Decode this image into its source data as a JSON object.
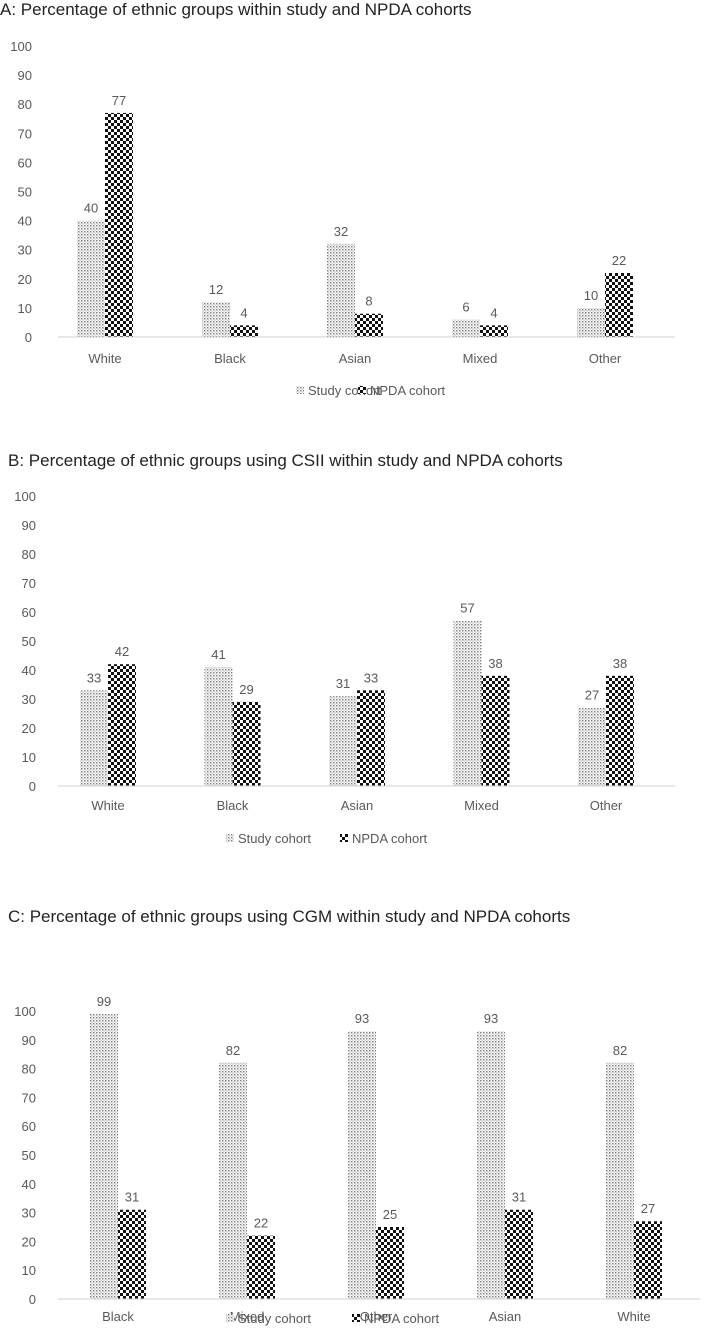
{
  "chart_data": [
    {
      "type": "bar",
      "title": "A: Percentage of ethnic groups within study and NPDA cohorts",
      "categories": [
        "White",
        "Black",
        "Asian",
        "Mixed",
        "Other"
      ],
      "series": [
        {
          "name": "Study cohort",
          "values": [
            40,
            12,
            32,
            6,
            10
          ]
        },
        {
          "name": "NPDA cohort",
          "values": [
            77,
            4,
            8,
            4,
            22
          ]
        }
      ],
      "ylim": [
        0,
        100
      ],
      "yticks": [
        0,
        10,
        20,
        30,
        40,
        50,
        60,
        70,
        80,
        90,
        100
      ],
      "xlabel": "",
      "ylabel": "",
      "legend": "bottom-center",
      "grid": false
    },
    {
      "type": "bar",
      "title": "B: Percentage of ethnic groups using CSII within study and NPDA cohorts",
      "categories": [
        "White",
        "Black",
        "Asian",
        "Mixed",
        "Other"
      ],
      "series": [
        {
          "name": "Study cohort",
          "values": [
            33,
            41,
            31,
            57,
            27
          ]
        },
        {
          "name": "NPDA cohort",
          "values": [
            42,
            29,
            33,
            38,
            38
          ]
        }
      ],
      "ylim": [
        0,
        100
      ],
      "yticks": [
        0,
        10,
        20,
        30,
        40,
        50,
        60,
        70,
        80,
        90,
        100
      ],
      "xlabel": "",
      "ylabel": "",
      "legend": "bottom-center",
      "grid": false
    },
    {
      "type": "bar",
      "title": "C: Percentage of ethnic groups using CGM within study and NPDA cohorts",
      "categories": [
        "Black",
        "Mixed",
        "Other",
        "Asian",
        "White"
      ],
      "series": [
        {
          "name": "Study cohort",
          "values": [
            99,
            82,
            93,
            93,
            82
          ]
        },
        {
          "name": "NPDA cohort",
          "values": [
            31,
            22,
            25,
            31,
            27
          ]
        }
      ],
      "ylim": [
        0,
        100
      ],
      "yticks": [
        0,
        10,
        20,
        30,
        40,
        50,
        60,
        70,
        80,
        90,
        100
      ],
      "xlabel": "",
      "ylabel": "",
      "legend": "bottom-center",
      "grid": false
    }
  ]
}
